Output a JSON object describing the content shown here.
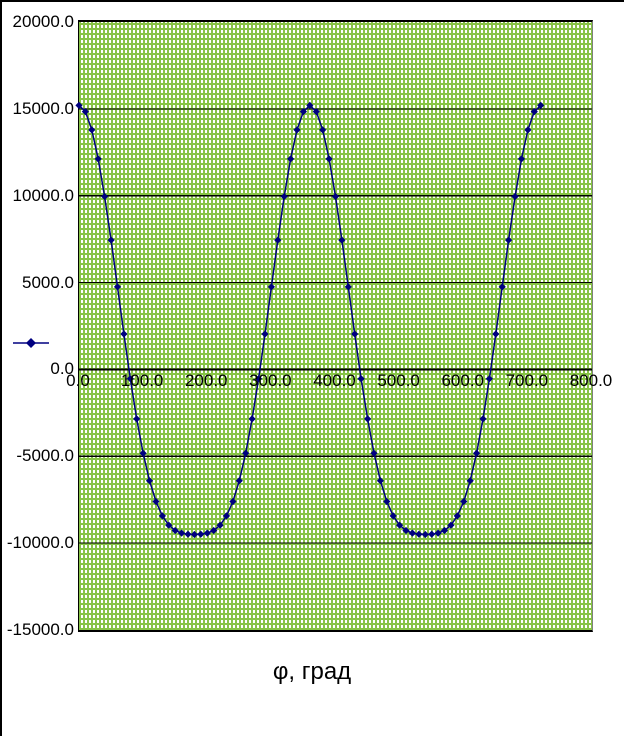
{
  "window": {
    "background": "#ffffff",
    "frame_border_color": "#000000"
  },
  "chart_data": {
    "type": "line",
    "title": "",
    "xlabel": "φ, град",
    "ylabel": "",
    "xlim": [
      0,
      800
    ],
    "ylim": [
      -15000,
      20000
    ],
    "grid": true,
    "legend_position": "left",
    "legend_label": "",
    "marker": "diamond",
    "series_color": "#000080",
    "gridline_color": "#000000",
    "plot_pattern_color": "#87C346",
    "plot_background": "#ffffff",
    "y_tick_values": [
      20000,
      15000,
      10000,
      5000,
      0,
      -5000,
      -10000,
      -15000
    ],
    "y_ticks": [
      "20000.0",
      "15000.0",
      "10000.0",
      "5000.0",
      "0.0",
      "-5000.0",
      "-10000.0",
      "-15000.0"
    ],
    "x_tick_values": [
      0,
      100,
      200,
      300,
      400,
      500,
      600,
      700,
      800
    ],
    "x_ticks": [
      "0.0",
      "100.0",
      "200.0",
      "300.0",
      "400.0",
      "500.0",
      "600.0",
      "700.0",
      "800.0"
    ],
    "y_gridlines": [
      15000,
      10000,
      5000,
      0,
      -5000,
      -10000
    ],
    "x": [
      0,
      10,
      20,
      30,
      40,
      50,
      60,
      70,
      80,
      90,
      100,
      110,
      120,
      130,
      140,
      150,
      160,
      170,
      180,
      190,
      200,
      210,
      220,
      230,
      240,
      250,
      260,
      270,
      280,
      290,
      300,
      310,
      320,
      330,
      340,
      350,
      360,
      370,
      380,
      390,
      400,
      410,
      420,
      430,
      440,
      450,
      460,
      470,
      480,
      490,
      500,
      510,
      520,
      530,
      540,
      550,
      560,
      570,
      580,
      590,
      600,
      610,
      620,
      630,
      640,
      650,
      660,
      670,
      680,
      690,
      700,
      710,
      720
    ],
    "series": [
      {
        "name": "",
        "values": [
          15199,
          14840,
          13788,
          12120,
          9955,
          7444,
          4750,
          2041,
          -533,
          -2849,
          -4822,
          -6406,
          -7600,
          -8433,
          -8966,
          -9271,
          -9423,
          -9485,
          -9501,
          -9485,
          -9423,
          -9271,
          -8966,
          -8433,
          -7600,
          -6406,
          -4822,
          -2849,
          -533,
          2041,
          4750,
          7444,
          9955,
          12120,
          13788,
          14840,
          15199,
          14840,
          13788,
          12120,
          9955,
          7444,
          4750,
          2041,
          -533,
          -2849,
          -4822,
          -6406,
          -7600,
          -8433,
          -8966,
          -9271,
          -9423,
          -9485,
          -9501,
          -9485,
          -9423,
          -9271,
          -8966,
          -8433,
          -7600,
          -6406,
          -4822,
          -2849,
          -533,
          2041,
          4750,
          7444,
          9955,
          12120,
          13788,
          14840,
          15199
        ]
      }
    ]
  }
}
